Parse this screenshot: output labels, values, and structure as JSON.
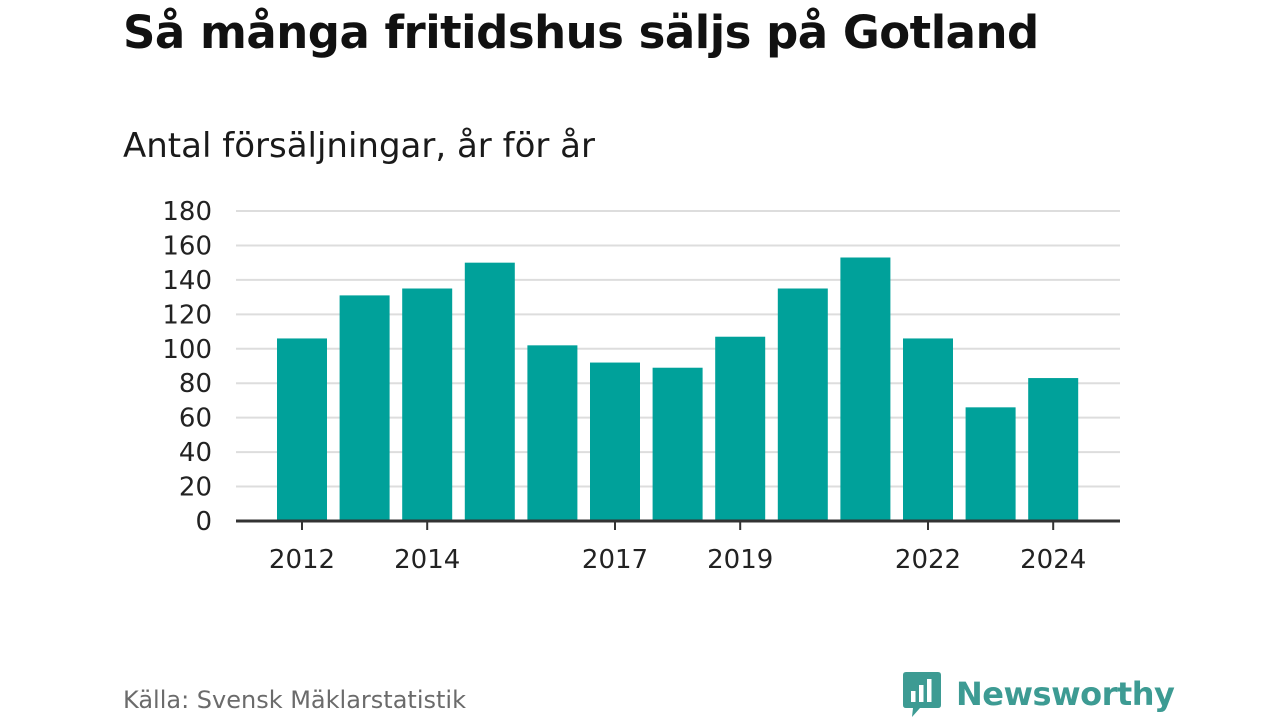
{
  "colors": {
    "bar": "#00a19a",
    "grid": "#dddddd",
    "axis": "#333333",
    "tick_text": "#222222",
    "brand": "#3d9b93"
  },
  "source": "Källa: Svensk Mäklarstatistik",
  "logo": {
    "text": "Newsworthy",
    "icon": "newsworthy-chat-bar-icon"
  },
  "chart_data": {
    "type": "bar",
    "title": "Så många fritidshus säljs på Gotland",
    "subtitle": "Antal försäljningar, år för år",
    "xlabel": "",
    "ylabel": "",
    "categories": [
      "2012",
      "2013",
      "2014",
      "2015",
      "2016",
      "2017",
      "2018",
      "2019",
      "2020",
      "2021",
      "2022",
      "2023",
      "2024"
    ],
    "values": [
      106,
      131,
      135,
      150,
      102,
      92,
      89,
      107,
      135,
      153,
      106,
      66,
      83
    ],
    "x_tick_labels": [
      "2012",
      "2014",
      "2017",
      "2019",
      "2022",
      "2024"
    ],
    "y_ticks": [
      0,
      20,
      40,
      60,
      80,
      100,
      120,
      140,
      160,
      180
    ],
    "ylim": [
      0,
      180
    ],
    "grid": true,
    "legend": "none"
  }
}
